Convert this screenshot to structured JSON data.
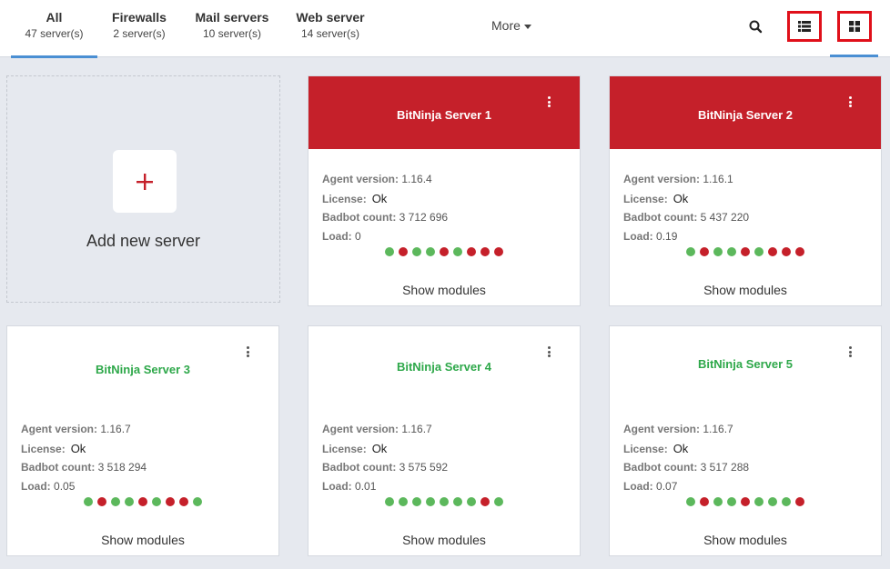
{
  "tabs": [
    {
      "title": "All",
      "count": "47 server(s)"
    },
    {
      "title": "Firewalls",
      "count": "2 server(s)"
    },
    {
      "title": "Mail servers",
      "count": "10 server(s)"
    },
    {
      "title": "Web server",
      "count": "14 server(s)"
    }
  ],
  "more_label": "More",
  "add_card": {
    "label": "Add new server"
  },
  "labels": {
    "agent_version": "Agent version:",
    "license": "License:",
    "badbot_count": "Badbot count:",
    "load": "Load:",
    "show_modules": "Show modules"
  },
  "servers": [
    {
      "name": "BitNinja Server 1",
      "status": "red",
      "agent_version": "1.16.4",
      "license": "Ok",
      "badbot_count": "3 712 696",
      "load": "0",
      "modules": [
        "g",
        "r",
        "g",
        "g",
        "r",
        "g",
        "r",
        "r",
        "r"
      ]
    },
    {
      "name": "BitNinja Server 2",
      "status": "red",
      "agent_version": "1.16.1",
      "license": "Ok",
      "badbot_count": "5 437 220",
      "load": "0.19",
      "modules": [
        "g",
        "r",
        "g",
        "g",
        "r",
        "g",
        "r",
        "r",
        "r"
      ]
    },
    {
      "name": "BitNinja Server 3",
      "status": "green",
      "agent_version": "1.16.7",
      "license": "Ok",
      "badbot_count": "3 518 294",
      "load": "0.05",
      "modules": [
        "g",
        "r",
        "g",
        "g",
        "r",
        "g",
        "r",
        "r",
        "g"
      ]
    },
    {
      "name": "BitNinja Server 4",
      "status": "green",
      "agent_version": "1.16.7",
      "license": "Ok",
      "badbot_count": "3 575 592",
      "load": "0.01",
      "modules": [
        "g",
        "g",
        "g",
        "g",
        "g",
        "g",
        "g",
        "r",
        "g"
      ]
    },
    {
      "name": "BitNinja Server 5",
      "status": "green",
      "agent_version": "1.16.7",
      "license": "Ok",
      "badbot_count": "3 517 288",
      "load": "0.07",
      "modules": [
        "g",
        "r",
        "g",
        "g",
        "r",
        "g",
        "g",
        "g",
        "r"
      ]
    }
  ],
  "colors": {
    "accent": "#4a8fd3",
    "brand_red": "#c5202a",
    "ok_green": "#5cb85c",
    "highlight": "#e0101a"
  }
}
